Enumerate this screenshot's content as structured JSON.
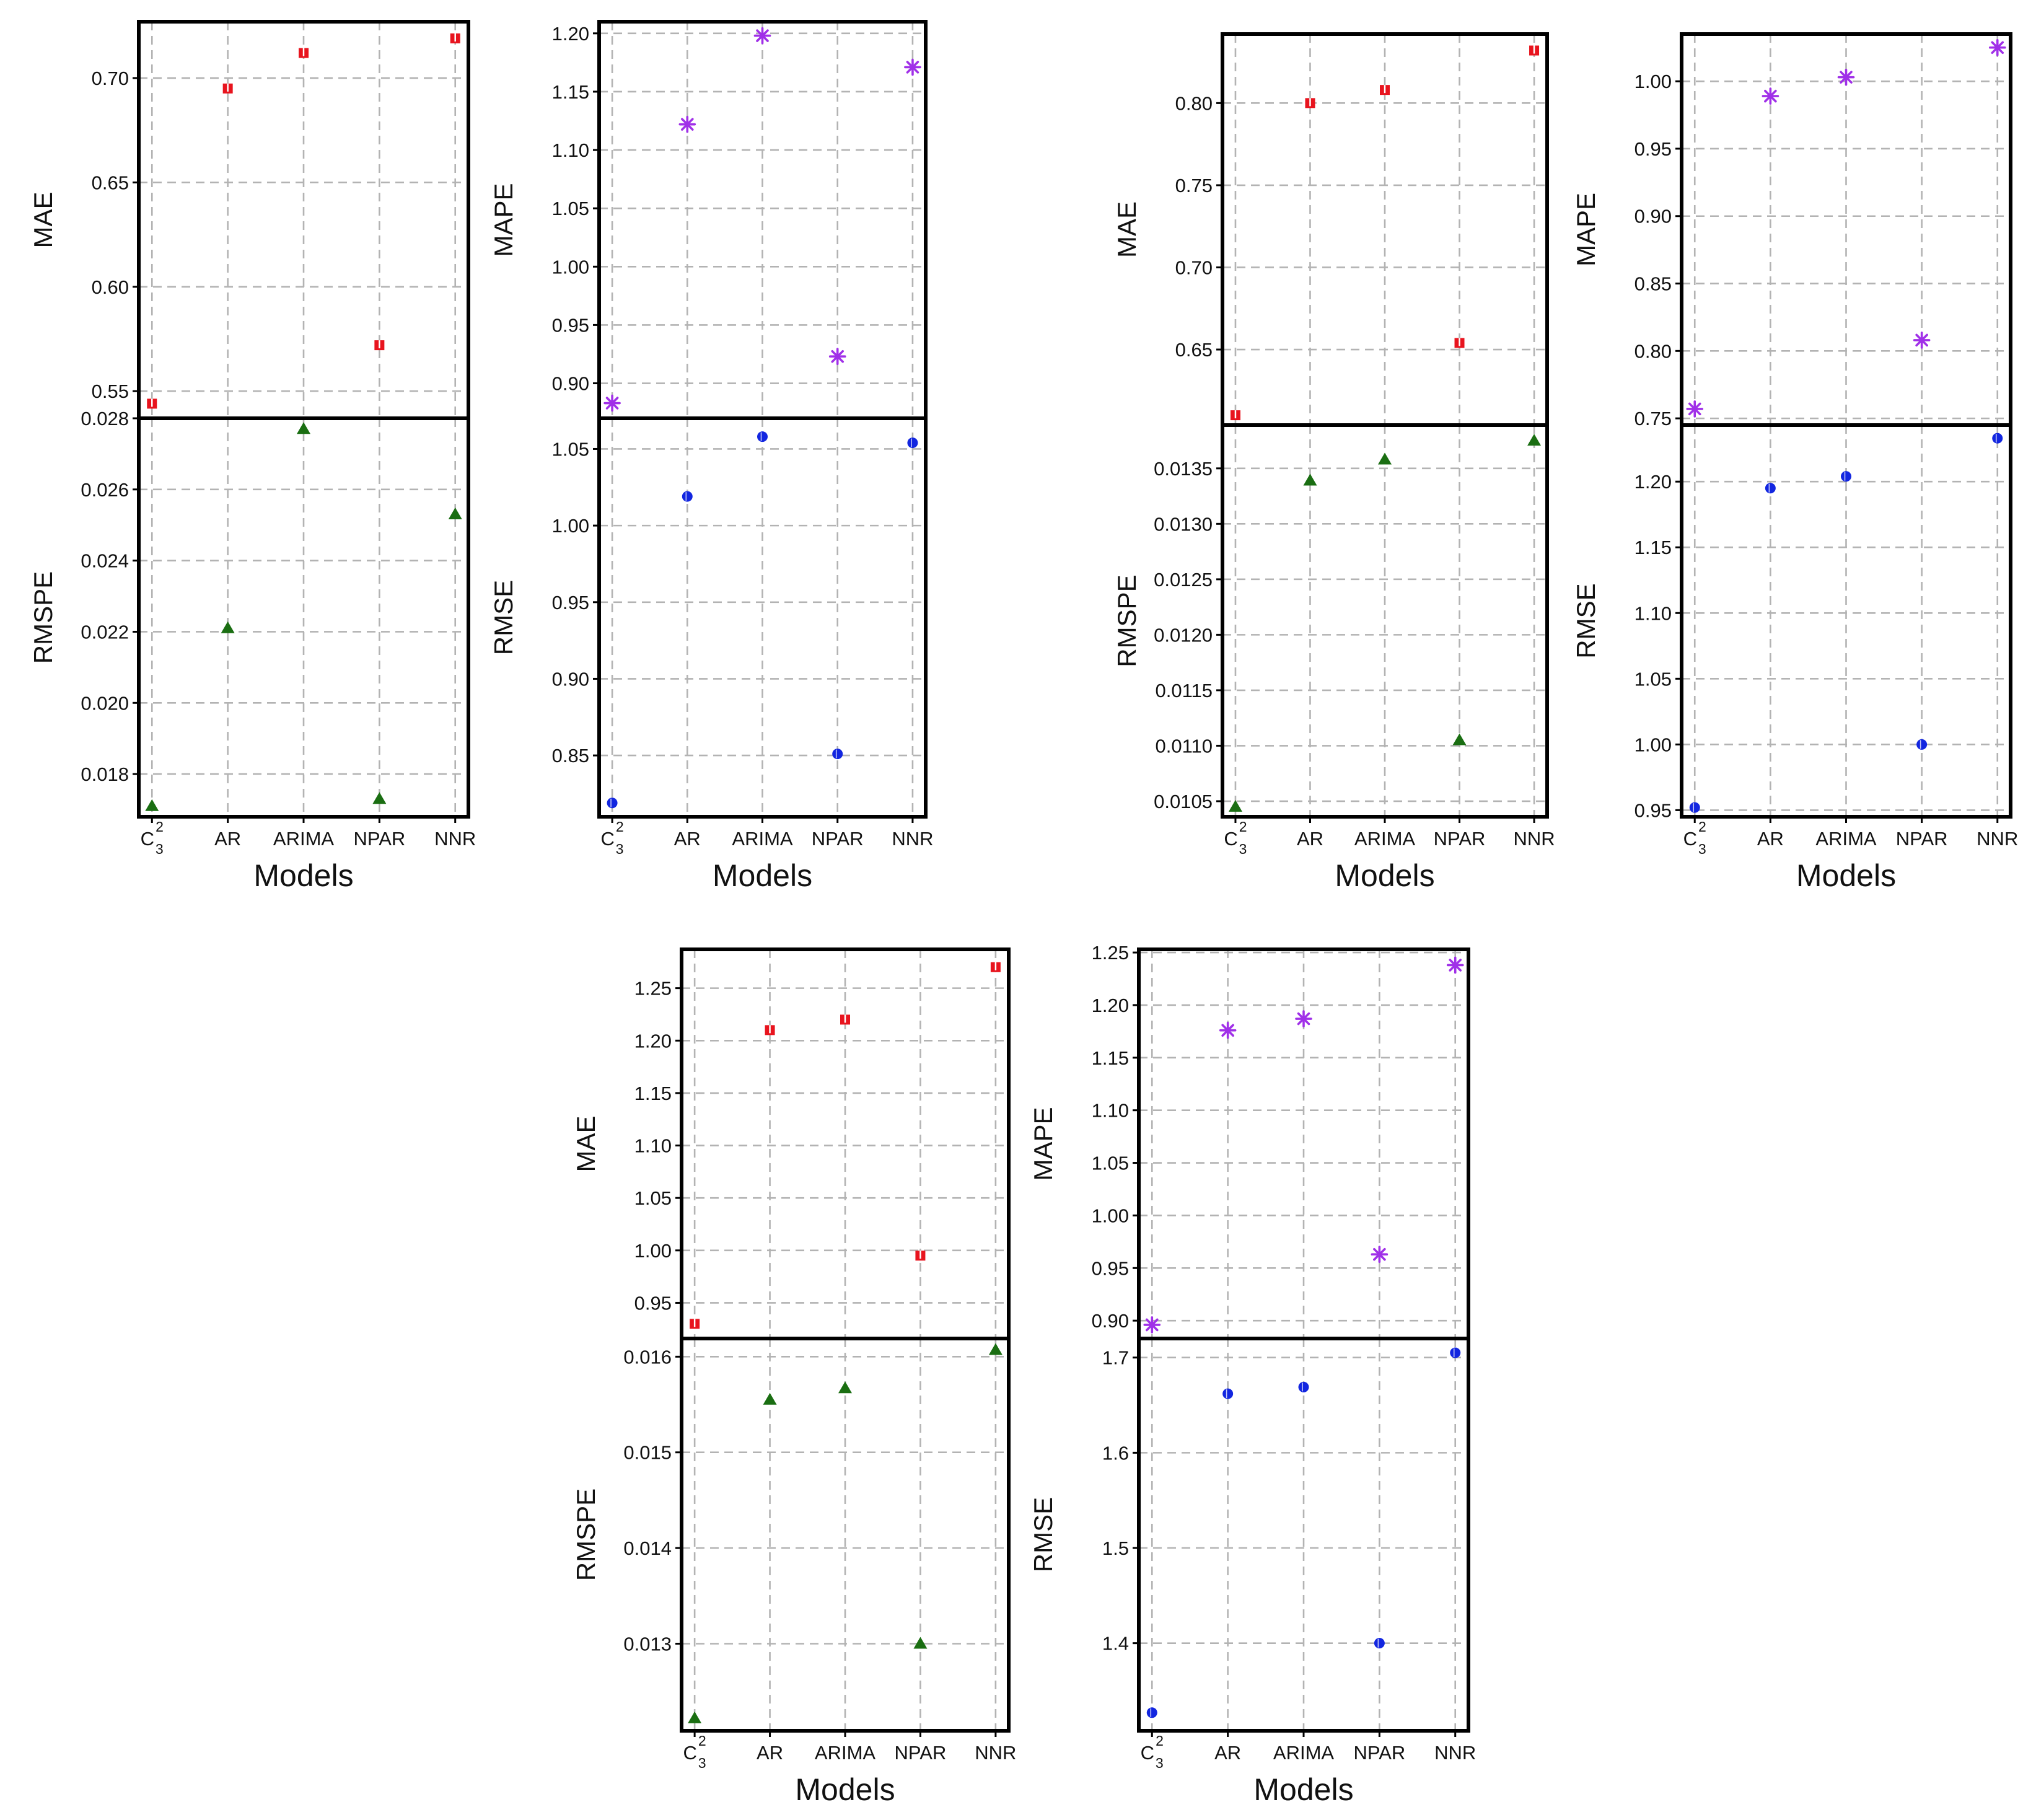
{
  "figure": {
    "x_title": "Models",
    "x_categories": [
      "C",
      "AR",
      "ARIMA",
      "NPAR",
      "NNR"
    ],
    "c_subscript": "3",
    "c_superscript": "2"
  },
  "colors": {
    "MAE": "#e8141e",
    "MAPE": "#a030e8",
    "RMSPE": "#1a6e12",
    "RMSE": "#1226e0"
  },
  "chart_data": [
    {
      "id": "panel-1-left",
      "type": "scatter",
      "categories": [
        "C",
        "AR",
        "ARIMA",
        "NPAR",
        "NNR"
      ],
      "xlabel": "Models",
      "series": [
        {
          "name": "MAE",
          "marker": "square",
          "values": [
            0.544,
            0.695,
            0.712,
            0.572,
            0.719
          ],
          "ylim": [
            0.537,
            0.727
          ],
          "ticks": [
            0.55,
            0.6,
            0.65,
            0.7
          ],
          "tick_labels": [
            "0.55",
            "0.60",
            "0.65",
            "0.70"
          ]
        },
        {
          "name": "RMSPE",
          "marker": "triangle",
          "values": [
            0.0171,
            0.0221,
            0.0277,
            0.0173,
            0.0253
          ],
          "ylim": [
            0.0168,
            0.028
          ],
          "ticks": [
            0.018,
            0.02,
            0.022,
            0.024,
            0.026,
            0.028
          ],
          "tick_labels": [
            "0.018",
            "0.020",
            "0.022",
            "0.024",
            "0.026",
            "0.028"
          ]
        }
      ]
    },
    {
      "id": "panel-1-right",
      "type": "scatter",
      "categories": [
        "C",
        "AR",
        "ARIMA",
        "NPAR",
        "NNR"
      ],
      "xlabel": "Models",
      "series": [
        {
          "name": "MAPE",
          "marker": "asterisk",
          "values": [
            0.883,
            1.122,
            1.198,
            0.923,
            1.171
          ],
          "ylim": [
            0.87,
            1.21
          ],
          "ticks": [
            0.9,
            0.95,
            1.0,
            1.05,
            1.1,
            1.15,
            1.2
          ],
          "tick_labels": [
            "0.90",
            "0.95",
            "1.00",
            "1.05",
            "1.10",
            "1.15",
            "1.20"
          ]
        },
        {
          "name": "RMSE",
          "marker": "circle",
          "values": [
            0.819,
            1.019,
            1.058,
            0.851,
            1.054
          ],
          "ylim": [
            0.81,
            1.07
          ],
          "ticks": [
            0.85,
            0.9,
            0.95,
            1.0,
            1.05
          ],
          "tick_labels": [
            "0.85",
            "0.90",
            "0.95",
            "1.00",
            "1.05"
          ]
        }
      ]
    },
    {
      "id": "panel-2-left",
      "type": "scatter",
      "categories": [
        "C",
        "AR",
        "ARIMA",
        "NPAR",
        "NNR"
      ],
      "xlabel": "Models",
      "series": [
        {
          "name": "MAE",
          "marker": "square",
          "values": [
            0.61,
            0.8,
            0.808,
            0.654,
            0.832
          ],
          "ylim": [
            0.604,
            0.842
          ],
          "ticks": [
            0.65,
            0.7,
            0.75,
            0.8
          ],
          "tick_labels": [
            "0.65",
            "0.70",
            "0.75",
            "0.80"
          ]
        },
        {
          "name": "RMSPE",
          "marker": "triangle",
          "values": [
            0.01045,
            0.01339,
            0.01358,
            0.01105,
            0.01375
          ],
          "ylim": [
            0.01036,
            0.01389
          ],
          "ticks": [
            0.0105,
            0.011,
            0.0115,
            0.012,
            0.0125,
            0.013,
            0.0135
          ],
          "tick_labels": [
            "0.0105",
            "0.0110",
            "0.0115",
            "0.0120",
            "0.0125",
            "0.0130",
            "0.0135"
          ]
        }
      ]
    },
    {
      "id": "panel-2-right",
      "type": "scatter",
      "categories": [
        "C",
        "AR",
        "ARIMA",
        "NPAR",
        "NNR"
      ],
      "xlabel": "Models",
      "series": [
        {
          "name": "MAPE",
          "marker": "asterisk",
          "values": [
            0.757,
            0.989,
            1.003,
            0.808,
            1.025
          ],
          "ylim": [
            0.745,
            1.035
          ],
          "ticks": [
            0.75,
            0.8,
            0.85,
            0.9,
            0.95,
            1.0
          ],
          "tick_labels": [
            "0.75",
            "0.80",
            "0.85",
            "0.90",
            "0.95",
            "1.00"
          ]
        },
        {
          "name": "RMSE",
          "marker": "circle",
          "values": [
            0.952,
            1.195,
            1.204,
            1.0,
            1.233
          ],
          "ylim": [
            0.945,
            1.243
          ],
          "ticks": [
            0.95,
            1.0,
            1.05,
            1.1,
            1.15,
            1.2
          ],
          "tick_labels": [
            "0.95",
            "1.00",
            "1.05",
            "1.10",
            "1.15",
            "1.20"
          ]
        }
      ]
    },
    {
      "id": "panel-3-left",
      "type": "scatter",
      "categories": [
        "C",
        "AR",
        "ARIMA",
        "NPAR",
        "NNR"
      ],
      "xlabel": "Models",
      "series": [
        {
          "name": "MAE",
          "marker": "square",
          "values": [
            0.93,
            1.21,
            1.22,
            0.995,
            1.27
          ],
          "ylim": [
            0.916,
            1.287
          ],
          "ticks": [
            0.95,
            1.0,
            1.05,
            1.1,
            1.15,
            1.2,
            1.25
          ],
          "tick_labels": [
            "0.95",
            "1.00",
            "1.05",
            "1.10",
            "1.15",
            "1.20",
            "1.25"
          ]
        },
        {
          "name": "RMSPE",
          "marker": "triangle",
          "values": [
            0.01222,
            0.01555,
            0.01567,
            0.013,
            0.01607
          ],
          "ylim": [
            0.01209,
            0.01619
          ],
          "ticks": [
            0.013,
            0.014,
            0.015,
            0.016
          ],
          "tick_labels": [
            "0.013",
            "0.014",
            "0.015",
            "0.016"
          ]
        }
      ]
    },
    {
      "id": "panel-3-right",
      "type": "scatter",
      "categories": [
        "C",
        "AR",
        "ARIMA",
        "NPAR",
        "NNR"
      ],
      "xlabel": "Models",
      "series": [
        {
          "name": "MAPE",
          "marker": "asterisk",
          "values": [
            0.896,
            1.176,
            1.187,
            0.963,
            1.238
          ],
          "ylim": [
            0.883,
            1.253
          ],
          "ticks": [
            0.9,
            0.95,
            1.0,
            1.05,
            1.1,
            1.15,
            1.2,
            1.25
          ],
          "tick_labels": [
            "0.90",
            "0.95",
            "1.00",
            "1.05",
            "1.10",
            "1.15",
            "1.20",
            "1.25"
          ]
        },
        {
          "name": "RMSE",
          "marker": "circle",
          "values": [
            1.327,
            1.662,
            1.669,
            1.4,
            1.705
          ],
          "ylim": [
            1.308,
            1.72
          ],
          "ticks": [
            1.4,
            1.5,
            1.6,
            1.7
          ],
          "tick_labels": [
            "1.4",
            "1.5",
            "1.6",
            "1.7"
          ]
        }
      ]
    }
  ]
}
